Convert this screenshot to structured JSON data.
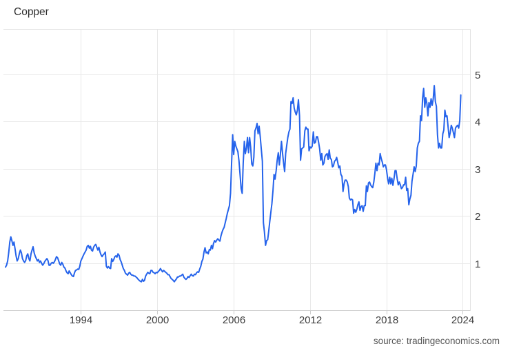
{
  "header": {
    "title": "Copper"
  },
  "footer": {
    "source_credit": "source: tradingeconomics.com"
  },
  "chart_data": {
    "type": "line",
    "title": "Copper",
    "xlabel": "",
    "ylabel": "",
    "legend": "none",
    "grid": true,
    "line_color": "#2563eb",
    "grid_color": "#e8e8e8",
    "border_color": "#e2e2e2",
    "axis_color": "#cccccc",
    "label_color": "#3c3c3c",
    "x_range": [
      1988.6,
      2025.1
    ],
    "y_range": [
      0,
      5.95
    ],
    "x_tick_labels": [
      "1994",
      "2000",
      "2006",
      "2012",
      "2018",
      "2024"
    ],
    "x_tick_positions": [
      1994.5,
      2000.5,
      2006.5,
      2012.5,
      2018.5,
      2024.5
    ],
    "y_ticks": [
      1,
      2,
      3,
      4,
      5
    ],
    "series": [
      {
        "name": "Copper",
        "x_start": 1988.6,
        "x_step": 0.0833333,
        "values": [
          0.92,
          0.96,
          1.05,
          1.22,
          1.45,
          1.56,
          1.48,
          1.38,
          1.45,
          1.3,
          1.15,
          1.05,
          1.1,
          1.2,
          1.28,
          1.22,
          1.1,
          1.05,
          1.02,
          1.06,
          1.16,
          1.2,
          1.1,
          1.05,
          1.2,
          1.28,
          1.35,
          1.22,
          1.15,
          1.1,
          1.05,
          1.08,
          1.02,
          1.05,
          1.0,
          0.96,
          0.99,
          1.04,
          1.07,
          1.1,
          1.06,
          0.96,
          0.96,
          1.0,
          1.02,
          1.0,
          1.03,
          1.08,
          1.14,
          1.12,
          1.06,
          0.99,
          0.96,
          1.02,
          0.98,
          0.92,
          0.9,
          0.84,
          0.8,
          0.78,
          0.84,
          0.8,
          0.76,
          0.73,
          0.72,
          0.8,
          0.85,
          0.86,
          0.88,
          0.87,
          0.94,
          1.05,
          1.1,
          1.15,
          1.2,
          1.24,
          1.28,
          1.36,
          1.38,
          1.32,
          1.36,
          1.28,
          1.26,
          1.34,
          1.38,
          1.4,
          1.34,
          1.28,
          1.34,
          1.24,
          1.18,
          1.14,
          1.18,
          1.2,
          1.24,
          0.94,
          0.9,
          0.93,
          0.9,
          0.89,
          1.1,
          1.04,
          1.08,
          1.14,
          1.16,
          1.13,
          1.2,
          1.17,
          1.08,
          1.03,
          0.96,
          0.89,
          0.85,
          0.79,
          0.77,
          0.75,
          0.79,
          0.81,
          0.77,
          0.75,
          0.75,
          0.73,
          0.73,
          0.71,
          0.69,
          0.66,
          0.64,
          0.62,
          0.61,
          0.66,
          0.62,
          0.64,
          0.73,
          0.77,
          0.81,
          0.79,
          0.78,
          0.85,
          0.85,
          0.81,
          0.8,
          0.78,
          0.81,
          0.8,
          0.83,
          0.85,
          0.89,
          0.85,
          0.82,
          0.85,
          0.83,
          0.81,
          0.79,
          0.76,
          0.76,
          0.72,
          0.68,
          0.66,
          0.64,
          0.61,
          0.64,
          0.67,
          0.71,
          0.71,
          0.73,
          0.73,
          0.75,
          0.77,
          0.71,
          0.68,
          0.66,
          0.68,
          0.72,
          0.7,
          0.74,
          0.77,
          0.74,
          0.73,
          0.77,
          0.76,
          0.8,
          0.82,
          0.81,
          0.88,
          0.94,
          1.04,
          1.09,
          1.24,
          1.33,
          1.22,
          1.24,
          1.2,
          1.29,
          1.28,
          1.38,
          1.31,
          1.42,
          1.48,
          1.45,
          1.49,
          1.52,
          1.49,
          1.47,
          1.58,
          1.66,
          1.72,
          1.76,
          1.86,
          1.95,
          2.06,
          2.14,
          2.22,
          2.48,
          3.1,
          3.72,
          3.3,
          3.58,
          3.48,
          3.42,
          3.36,
          3.16,
          2.88,
          2.58,
          2.48,
          3.12,
          3.58,
          3.32,
          3.44,
          3.66,
          3.34,
          3.66,
          3.46,
          3.1,
          3.06,
          3.24,
          3.8,
          3.86,
          3.96,
          3.74,
          3.9,
          3.68,
          3.42,
          3.16,
          1.86,
          1.66,
          1.38,
          1.48,
          1.5,
          1.68,
          1.88,
          2.08,
          2.26,
          2.54,
          2.88,
          2.78,
          2.96,
          3.18,
          3.34,
          3.08,
          3.3,
          3.58,
          3.34,
          3.12,
          2.94,
          3.32,
          3.5,
          3.66,
          3.78,
          3.84,
          4.42,
          4.38,
          4.5,
          4.28,
          4.2,
          4.14,
          4.24,
          4.46,
          4.12,
          3.18,
          3.42,
          3.44,
          3.46,
          3.8,
          3.88,
          3.84,
          3.84,
          3.38,
          3.46,
          3.44,
          3.48,
          3.78,
          3.54,
          3.56,
          3.68,
          3.68,
          3.56,
          3.42,
          3.18,
          3.32,
          3.08,
          3.12,
          3.26,
          3.3,
          3.32,
          3.2,
          3.4,
          3.22,
          3.2,
          3.04,
          3.06,
          3.16,
          3.18,
          3.24,
          3.14,
          3.02,
          3.06,
          2.88,
          2.84,
          2.52,
          2.68,
          2.76,
          2.76,
          2.72,
          2.62,
          2.38,
          2.34,
          2.36,
          2.34,
          2.06,
          2.14,
          2.08,
          2.14,
          2.24,
          2.3,
          2.12,
          2.2,
          2.22,
          2.1,
          2.22,
          2.22,
          2.64,
          2.52,
          2.7,
          2.72,
          2.66,
          2.62,
          2.6,
          2.72,
          2.9,
          3.12,
          2.96,
          3.12,
          3.08,
          3.32,
          3.22,
          3.14,
          3.04,
          3.08,
          3.08,
          2.98,
          2.8,
          2.68,
          2.82,
          2.68,
          2.8,
          2.65,
          2.78,
          2.96,
          2.96,
          2.8,
          2.66,
          2.72,
          2.66,
          2.58,
          2.6,
          2.66,
          2.66,
          2.82,
          2.54,
          2.58,
          2.24,
          2.36,
          2.44,
          2.74,
          2.88,
          3.04,
          2.94,
          3.06,
          3.44,
          3.54,
          3.58,
          4.12,
          4.02,
          4.5,
          4.7,
          4.3,
          4.5,
          4.38,
          4.12,
          4.4,
          4.3,
          4.48,
          4.34,
          4.48,
          4.76,
          4.42,
          4.32,
          3.72,
          3.44,
          3.54,
          3.44,
          3.44,
          3.74,
          3.82,
          4.24,
          4.1,
          4.12,
          3.88,
          3.66,
          3.76,
          3.92,
          3.86,
          3.76,
          3.66,
          3.86,
          3.9,
          3.92,
          3.86,
          4.02,
          4.56
        ]
      }
    ]
  }
}
